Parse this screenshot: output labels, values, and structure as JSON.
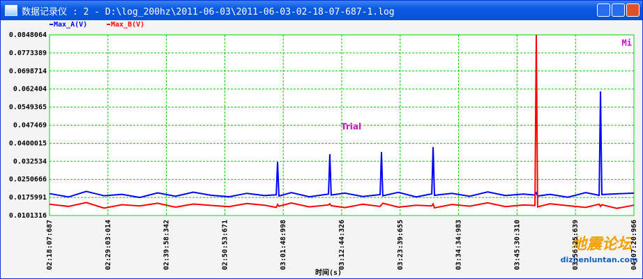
{
  "window": {
    "title": "数据记录仪 : 2 - D:\\log_200hz\\2011-06-03\\2011-06-03-02-18-07-687-1.log"
  },
  "chart_data": {
    "type": "line",
    "x": [
      8288,
      8500,
      8700,
      8900,
      9100,
      9300,
      9500,
      9700,
      9900,
      10100,
      10300,
      10500,
      10700,
      10830,
      10845,
      10860,
      11000,
      11200,
      11416,
      11431,
      11446,
      11600,
      11800,
      11995,
      12010,
      12025,
      12200,
      12400,
      12574,
      12589,
      12604,
      12800,
      13000,
      13200,
      13400,
      13600,
      13731,
      13746,
      13761,
      13900,
      14100,
      14300,
      14451,
      14466,
      14481,
      14650,
      14841
    ],
    "series": [
      {
        "name": "Max_A(V)",
        "color": "#0000ff",
        "values": [
          0.0192,
          0.0178,
          0.0201,
          0.0183,
          0.0189,
          0.0176,
          0.0195,
          0.0181,
          0.0198,
          0.0185,
          0.0179,
          0.0193,
          0.0184,
          0.0187,
          0.0323,
          0.0182,
          0.0196,
          0.0179,
          0.019,
          0.0355,
          0.0186,
          0.0194,
          0.018,
          0.0188,
          0.0364,
          0.0183,
          0.0197,
          0.0178,
          0.0191,
          0.0384,
          0.0185,
          0.0193,
          0.0181,
          0.0199,
          0.0184,
          0.019,
          0.0186,
          0.0195,
          0.0182,
          0.0189,
          0.0177,
          0.0196,
          0.0185,
          0.0614,
          0.0188,
          0.0191,
          0.0194
        ]
      },
      {
        "name": "Max_B(V)",
        "color": "#ff0000",
        "values": [
          0.0148,
          0.0139,
          0.0155,
          0.0132,
          0.0146,
          0.0141,
          0.0152,
          0.0136,
          0.0149,
          0.0143,
          0.0138,
          0.0151,
          0.0144,
          0.0135,
          0.0147,
          0.014,
          0.0153,
          0.0137,
          0.0145,
          0.015,
          0.0142,
          0.0134,
          0.0148,
          0.0139,
          0.0146,
          0.0152,
          0.0136,
          0.0144,
          0.0141,
          0.0149,
          0.0133,
          0.0147,
          0.014,
          0.0154,
          0.0138,
          0.0145,
          0.0143,
          0.0848,
          0.0137,
          0.015,
          0.0142,
          0.0135,
          0.0148,
          0.0139,
          0.0146,
          0.0131,
          0.0144
        ]
      }
    ],
    "xlim": [
      8287.687,
      14840.966
    ],
    "xticks": [
      {
        "value": 8287.687,
        "label": "02:18:07:687"
      },
      {
        "value": 8943.014,
        "label": "02:29:03:014"
      },
      {
        "value": 9598.342,
        "label": "02:39:58:342"
      },
      {
        "value": 10253.671,
        "label": "02:50:53:671"
      },
      {
        "value": 10908.998,
        "label": "03:01:48:998"
      },
      {
        "value": 11564.326,
        "label": "03:12:44:326"
      },
      {
        "value": 12219.655,
        "label": "03:23:39:655"
      },
      {
        "value": 12874.983,
        "label": "03:34:34:983"
      },
      {
        "value": 13530.31,
        "label": "03:45:30:310"
      },
      {
        "value": 14185.639,
        "label": "03:56:25:639"
      },
      {
        "value": 14840.966,
        "label": "04:07:20:966"
      }
    ],
    "ylim": [
      0.0101316,
      0.0848064
    ],
    "yticks": [
      0.0101316,
      0.0175991,
      0.0250666,
      0.032534,
      0.0400015,
      0.047469,
      0.0549365,
      0.062404,
      0.0698714,
      0.0773389,
      0.0848064
    ],
    "x_label": "时间(s)",
    "annotations": [
      "Trial",
      "Mi"
    ],
    "grid": true,
    "grid_color": "#00cc00"
  },
  "watermark": {
    "title": "地震论坛",
    "url": "dizhenluntan.com"
  }
}
